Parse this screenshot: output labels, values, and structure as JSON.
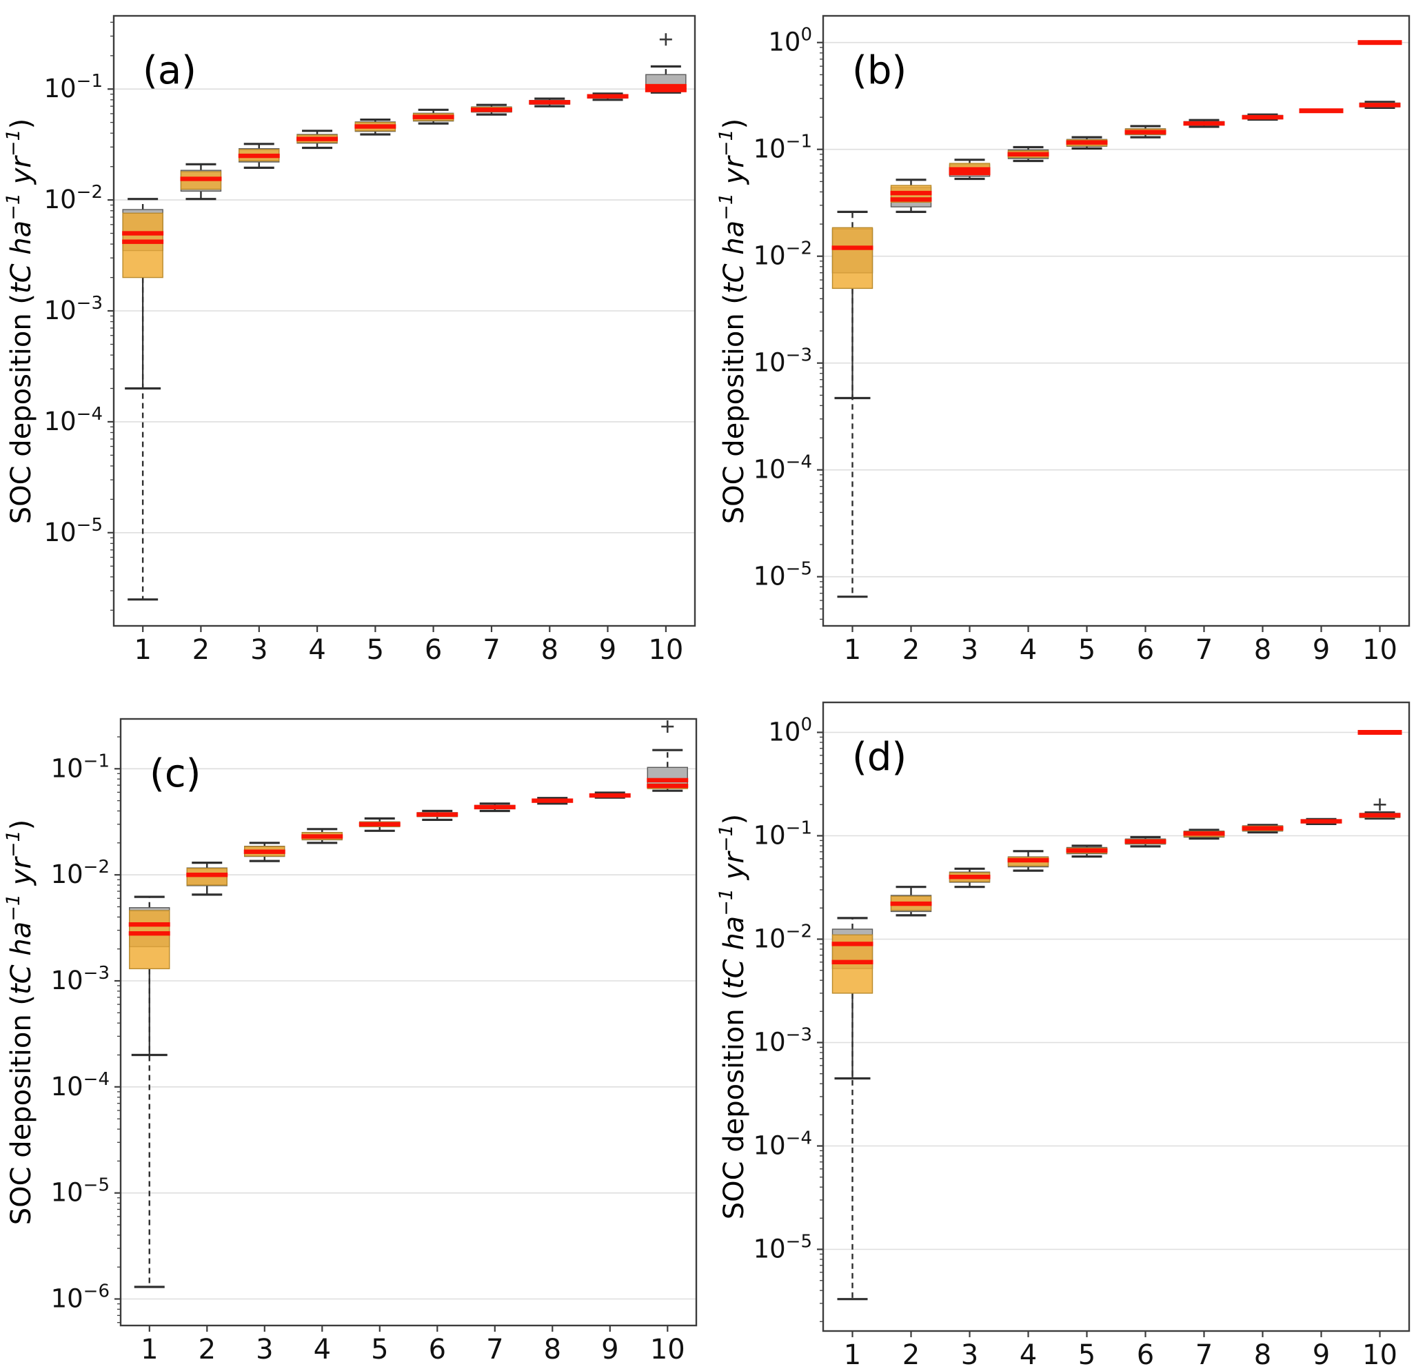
{
  "figure": {
    "background": "#ffffff",
    "ylabel": "SOC deposition (tC ha−1 yr−1)",
    "ylabel_segments": [
      {
        "text": "SOC deposition (",
        "style": "normal",
        "sup": false
      },
      {
        "text": "tC ha",
        "style": "italic",
        "sup": false
      },
      {
        "text": "−1",
        "style": "italic",
        "sup": true
      },
      {
        "text": " yr",
        "style": "italic",
        "sup": false
      },
      {
        "text": "−1",
        "style": "italic",
        "sup": true
      },
      {
        "text": ")",
        "style": "normal",
        "sup": false
      }
    ],
    "colors": {
      "orange_box": "#f0ac33",
      "orange_edge": "#b98a2c",
      "gray_box": "#b3b3b3",
      "gray_edge": "#5a5a5a",
      "median_red": "#f91405",
      "whisker": "#2e2e2e",
      "gridline": "#dedede",
      "spine": "#3c3c3c",
      "tick_text": "#111111"
    }
  },
  "chart_data": [
    {
      "label": "(a)",
      "type": "boxplot",
      "yscale": "log",
      "ylim_log10": [
        -5.84,
        -0.34
      ],
      "ytick_exponents": [
        -1,
        -2,
        -3,
        -4,
        -5
      ],
      "x_categories": [
        1,
        2,
        3,
        4,
        5,
        6,
        7,
        8,
        9,
        10
      ],
      "xlabel": "",
      "boxes": [
        {
          "x": 1,
          "gray": [
            0.0035,
            0.0082
          ],
          "orange": [
            0.002,
            0.0076
          ],
          "medians": [
            0.005,
            0.0042
          ],
          "whiskers": [
            2.5e-06,
            0.0102
          ],
          "cap_solid": 0.0002,
          "dashed": true
        },
        {
          "x": 2,
          "gray": [
            0.012,
            0.0185
          ],
          "orange": [
            0.0125,
            0.018
          ],
          "medians": [
            0.0155
          ],
          "whiskers": [
            0.0102,
            0.021
          ],
          "dashed": false
        },
        {
          "x": 3,
          "gray": [
            0.022,
            0.029
          ],
          "orange": [
            0.0225,
            0.0285
          ],
          "medians": [
            0.025
          ],
          "whiskers": [
            0.0195,
            0.032
          ],
          "dashed": false
        },
        {
          "x": 4,
          "gray": [
            0.0325,
            0.039
          ],
          "orange": [
            0.033,
            0.0385
          ],
          "medians": [
            0.0355
          ],
          "whiskers": [
            0.0295,
            0.042
          ],
          "dashed": false
        },
        {
          "x": 5,
          "gray": [
            0.0415,
            0.0505
          ],
          "orange": [
            0.042,
            0.05
          ],
          "medians": [
            0.046
          ],
          "whiskers": [
            0.039,
            0.053
          ],
          "dashed": false
        },
        {
          "x": 6,
          "gray": [
            0.0515,
            0.0605
          ],
          "orange": [
            0.052,
            0.06
          ],
          "medians": [
            0.056
          ],
          "whiskers": [
            0.049,
            0.065
          ],
          "dashed": false
        },
        {
          "x": 7,
          "gray": [
            0.062,
            0.069
          ],
          "orange": [
            0.0625,
            0.0685
          ],
          "medians": [
            0.065
          ],
          "whiskers": [
            0.059,
            0.072
          ],
          "dashed": false
        },
        {
          "x": 8,
          "gray": [
            0.073,
            0.079
          ],
          "orange": [
            0.0735,
            0.0785
          ],
          "medians": [
            0.076
          ],
          "whiskers": [
            0.07,
            0.082
          ],
          "dashed": false
        },
        {
          "x": 9,
          "gray": [
            0.083,
            0.089
          ],
          "orange": [
            0.0835,
            0.0885
          ],
          "medians": [
            0.086
          ],
          "whiskers": [
            0.08,
            0.091
          ],
          "dashed": false
        },
        {
          "x": 10,
          "gray": [
            0.105,
            0.135
          ],
          "orange": [
            0.095,
            0.11
          ],
          "medians": [
            0.106,
            0.098
          ],
          "whiskers": [
            0.093,
            0.16
          ],
          "dashed": true,
          "outlier": 0.28
        }
      ]
    },
    {
      "label": "(b)",
      "type": "boxplot",
      "yscale": "log",
      "ylim_log10": [
        -5.46,
        0.25
      ],
      "ytick_exponents": [
        0,
        -1,
        -2,
        -3,
        -4,
        -5
      ],
      "x_categories": [
        1,
        2,
        3,
        4,
        5,
        6,
        7,
        8,
        9,
        10
      ],
      "xlabel": "",
      "boxes": [
        {
          "x": 1,
          "gray": [
            0.007,
            0.018
          ],
          "orange": [
            0.005,
            0.0185
          ],
          "medians": [
            0.012
          ],
          "whiskers": [
            6.5e-06,
            0.026
          ],
          "cap_solid": 0.00047,
          "dashed": true
        },
        {
          "x": 2,
          "gray": [
            0.029,
            0.044
          ],
          "orange": [
            0.032,
            0.046
          ],
          "medians": [
            0.039,
            0.034
          ],
          "whiskers": [
            0.026,
            0.052
          ],
          "dashed": false
        },
        {
          "x": 3,
          "gray": [
            0.056,
            0.072
          ],
          "orange": [
            0.058,
            0.074
          ],
          "medians": [
            0.065,
            0.06
          ],
          "whiskers": [
            0.053,
            0.08
          ],
          "dashed": false
        },
        {
          "x": 4,
          "gray": [
            0.082,
            0.099
          ],
          "orange": [
            0.084,
            0.097
          ],
          "medians": [
            0.09
          ],
          "whiskers": [
            0.078,
            0.105
          ],
          "dashed": false
        },
        {
          "x": 5,
          "gray": [
            0.107,
            0.124
          ],
          "orange": [
            0.108,
            0.123
          ],
          "medians": [
            0.116
          ],
          "whiskers": [
            0.102,
            0.13
          ],
          "dashed": false
        },
        {
          "x": 6,
          "gray": [
            0.137,
            0.156
          ],
          "orange": [
            0.138,
            0.155
          ],
          "medians": [
            0.145
          ],
          "whiskers": [
            0.13,
            0.165
          ],
          "dashed": false
        },
        {
          "x": 7,
          "gray": [
            0.169,
            0.182
          ],
          "orange": [
            0.17,
            0.181
          ],
          "medians": [
            0.175
          ],
          "whiskers": [
            0.163,
            0.188
          ],
          "dashed": false
        },
        {
          "x": 8,
          "gray": [
            0.193,
            0.208
          ],
          "orange": [
            0.194,
            0.207
          ],
          "medians": [
            0.2
          ],
          "whiskers": [
            0.19,
            0.212
          ],
          "dashed": false
        },
        {
          "x": 9,
          "gray": null,
          "orange": null,
          "medians": [
            0.23
          ],
          "whiskers": null,
          "dashed": false,
          "line_only": true
        },
        {
          "x": 10,
          "gray": [
            0.25,
            0.272
          ],
          "orange": [
            0.252,
            0.27
          ],
          "medians": [
            0.26
          ],
          "whiskers": [
            0.245,
            0.278
          ],
          "dashed": false
        },
        {
          "x": 10,
          "gray": null,
          "orange": null,
          "medians": [
            1.0
          ],
          "whiskers": null,
          "dashed": false,
          "line_only": true
        }
      ]
    },
    {
      "label": "(c)",
      "type": "boxplot",
      "yscale": "log",
      "ylim_log10": [
        -6.25,
        -0.53
      ],
      "ytick_exponents": [
        -1,
        -2,
        -3,
        -4,
        -5,
        -6
      ],
      "x_categories": [
        1,
        2,
        3,
        4,
        5,
        6,
        7,
        8,
        9,
        10
      ],
      "xlabel": "",
      "boxes": [
        {
          "x": 1,
          "gray": [
            0.0021,
            0.0049
          ],
          "orange": [
            0.0013,
            0.0046
          ],
          "medians": [
            0.0034,
            0.0028
          ],
          "whiskers": [
            1.3e-06,
            0.0062
          ],
          "cap_solid": 0.0002,
          "dashed": true
        },
        {
          "x": 2,
          "gray": [
            0.0079,
            0.0116
          ],
          "orange": [
            0.008,
            0.0115
          ],
          "medians": [
            0.01
          ],
          "whiskers": [
            0.0065,
            0.013
          ],
          "dashed": false
        },
        {
          "x": 3,
          "gray": [
            0.0149,
            0.0186
          ],
          "orange": [
            0.015,
            0.0185
          ],
          "medians": [
            0.0165
          ],
          "whiskers": [
            0.0135,
            0.02
          ],
          "dashed": false
        },
        {
          "x": 4,
          "gray": [
            0.0214,
            0.0251
          ],
          "orange": [
            0.0215,
            0.025
          ],
          "medians": [
            0.023
          ],
          "whiskers": [
            0.02,
            0.027
          ],
          "dashed": false
        },
        {
          "x": 5,
          "gray": [
            0.0284,
            0.0316
          ],
          "orange": [
            0.0285,
            0.0315
          ],
          "medians": [
            0.03
          ],
          "whiskers": [
            0.026,
            0.034
          ],
          "dashed": false
        },
        {
          "x": 6,
          "gray": [
            0.0354,
            0.0386
          ],
          "orange": [
            0.0355,
            0.0385
          ],
          "medians": [
            0.037
          ],
          "whiskers": [
            0.033,
            0.04
          ],
          "dashed": false
        },
        {
          "x": 7,
          "gray": [
            0.0419,
            0.0451
          ],
          "orange": [
            0.042,
            0.045
          ],
          "medians": [
            0.0435
          ],
          "whiskers": [
            0.04,
            0.047
          ],
          "dashed": false
        },
        {
          "x": 8,
          "gray": [
            0.0484,
            0.0511
          ],
          "orange": [
            0.0485,
            0.051
          ],
          "medians": [
            0.05
          ],
          "whiskers": [
            0.047,
            0.053
          ],
          "dashed": false
        },
        {
          "x": 9,
          "gray": [
            0.055,
            0.058
          ],
          "orange": [
            0.0552,
            0.0578
          ],
          "medians": [
            0.056
          ],
          "whiskers": [
            0.0535,
            0.0595
          ],
          "dashed": false
        },
        {
          "x": 10,
          "gray": [
            0.066,
            0.103
          ],
          "orange": [
            0.065,
            0.072
          ],
          "medians": [
            0.078,
            0.069
          ],
          "whiskers": [
            0.062,
            0.15
          ],
          "dashed": true,
          "outlier": 0.25
        }
      ]
    },
    {
      "label": "(d)",
      "type": "boxplot",
      "yscale": "log",
      "ylim_log10": [
        -5.79,
        0.29
      ],
      "ytick_exponents": [
        0,
        -1,
        -2,
        -3,
        -4,
        -5
      ],
      "x_categories": [
        1,
        2,
        3,
        4,
        5,
        6,
        7,
        8,
        9,
        10
      ],
      "xlabel": "",
      "boxes": [
        {
          "x": 1,
          "gray": [
            0.0052,
            0.0125
          ],
          "orange": [
            0.003,
            0.011
          ],
          "medians": [
            0.009,
            0.006
          ],
          "whiskers": [
            3.3e-06,
            0.016
          ],
          "cap_solid": 0.00045,
          "dashed": true
        },
        {
          "x": 2,
          "gray": [
            0.0185,
            0.0265
          ],
          "orange": [
            0.019,
            0.026
          ],
          "medians": [
            0.022
          ],
          "whiskers": [
            0.017,
            0.032
          ],
          "dashed": false
        },
        {
          "x": 3,
          "gray": [
            0.0355,
            0.0445
          ],
          "orange": [
            0.036,
            0.044
          ],
          "medians": [
            0.04
          ],
          "whiskers": [
            0.032,
            0.048
          ],
          "dashed": false
        },
        {
          "x": 4,
          "gray": [
            0.05,
            0.0625
          ],
          "orange": [
            0.051,
            0.062
          ],
          "medians": [
            0.058
          ],
          "whiskers": [
            0.046,
            0.071
          ],
          "dashed": false
        },
        {
          "x": 5,
          "gray": [
            0.067,
            0.077
          ],
          "orange": [
            0.068,
            0.076
          ],
          "medians": [
            0.072
          ],
          "whiskers": [
            0.063,
            0.08
          ],
          "dashed": false
        },
        {
          "x": 6,
          "gray": [
            0.083,
            0.093
          ],
          "orange": [
            0.084,
            0.092
          ],
          "medians": [
            0.088
          ],
          "whiskers": [
            0.079,
            0.097
          ],
          "dashed": false
        },
        {
          "x": 7,
          "gray": [
            0.097,
            0.111
          ],
          "orange": [
            0.098,
            0.11
          ],
          "medians": [
            0.105
          ],
          "whiskers": [
            0.094,
            0.114
          ],
          "dashed": false
        },
        {
          "x": 8,
          "gray": [
            0.111,
            0.125
          ],
          "orange": [
            0.112,
            0.124
          ],
          "medians": [
            0.118
          ],
          "whiskers": [
            0.108,
            0.127
          ],
          "dashed": false
        },
        {
          "x": 9,
          "gray": [
            0.133,
            0.143
          ],
          "orange": [
            0.134,
            0.142
          ],
          "medians": [
            0.138
          ],
          "whiskers": [
            0.13,
            0.145
          ],
          "dashed": false
        },
        {
          "x": 10,
          "gray": [
            0.15,
            0.165
          ],
          "orange": [
            0.151,
            0.164
          ],
          "medians": [
            0.158
          ],
          "whiskers": [
            0.147,
            0.168
          ],
          "dashed": false,
          "outlier": 0.2
        },
        {
          "x": 10,
          "gray": null,
          "orange": null,
          "medians": [
            1.0
          ],
          "whiskers": null,
          "dashed": false,
          "line_only": true
        }
      ]
    }
  ]
}
